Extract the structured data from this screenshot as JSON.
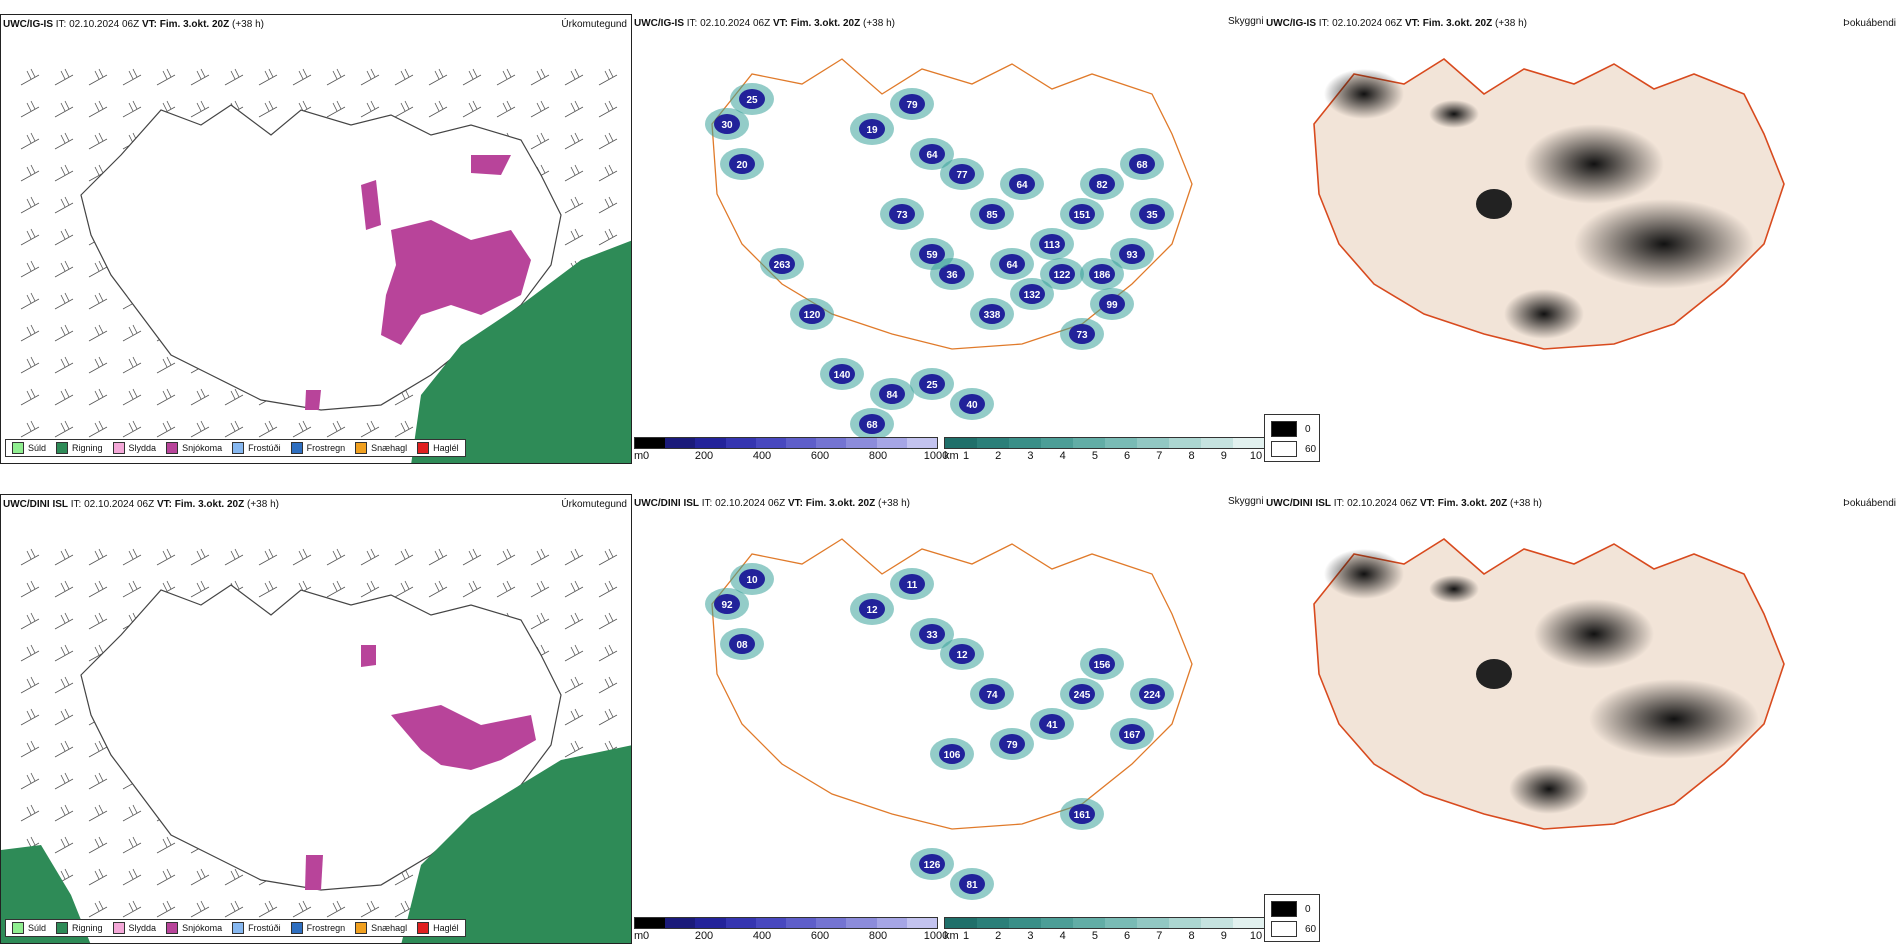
{
  "rows": [
    {
      "model": "UWC/IG-IS",
      "it_label": "IT:",
      "it_value": "02.10.2024 06Z",
      "vt_label": "VT:",
      "vt_value": "Fim. 3.okt. 20Z",
      "lead": "(+38 h)",
      "precip_title": "Úrkomutegund",
      "visibility_title": "Skyggni",
      "fog_title": "Þokuábendi",
      "vis_labels": [
        "30",
        "25",
        "20",
        "19",
        "79",
        "64",
        "77",
        "85",
        "64",
        "113",
        "151",
        "82",
        "93",
        "35",
        "36",
        "25",
        "40",
        "73",
        "68",
        "84",
        "132",
        "99",
        "140",
        "120",
        "263",
        "338",
        "122",
        "68",
        "73",
        "59",
        "64",
        "186"
      ]
    },
    {
      "model": "UWC/DINI ISL",
      "it_label": "IT:",
      "it_value": "02.10.2024 06Z",
      "vt_label": "VT:",
      "vt_value": "Fim. 3.okt. 20Z",
      "lead": "(+38 h)",
      "precip_title": "Úrkomutegund",
      "visibility_title": "Skyggni",
      "fog_title": "Þokuábendi",
      "vis_labels": [
        "92",
        "10",
        "08",
        "12",
        "11",
        "33",
        "12",
        "74",
        "79",
        "41",
        "245",
        "156",
        "167",
        "224",
        "106",
        "126",
        "81",
        "161"
      ]
    }
  ],
  "precip_legend": [
    {
      "label": "Súld",
      "color": "#90ee90"
    },
    {
      "label": "Rigning",
      "color": "#2e8b57"
    },
    {
      "label": "Slydda",
      "color": "#f4a8d8"
    },
    {
      "label": "Snjókoma",
      "color": "#b8449a"
    },
    {
      "label": "Frostúði",
      "color": "#87b8f0"
    },
    {
      "label": "Frostregn",
      "color": "#2f6fc0"
    },
    {
      "label": "Snæhagl",
      "color": "#f0a020"
    },
    {
      "label": "Haglél",
      "color": "#e02020"
    }
  ],
  "ceiling_scale": {
    "unit": "m",
    "ticks": [
      "0",
      "200",
      "400",
      "600",
      "800",
      "1000"
    ],
    "colors": [
      "#000000",
      "#1a1a7a",
      "#23239a",
      "#3535b0",
      "#4848bf",
      "#5e5ec9",
      "#7474d2",
      "#8c8cdb",
      "#a6a6e5",
      "#c3c3ef"
    ]
  },
  "vis_scale": {
    "unit": "km",
    "ticks": [
      "1",
      "2",
      "3",
      "4",
      "5",
      "6",
      "7",
      "8",
      "9",
      "10"
    ],
    "colors": [
      "#1f6f6a",
      "#2b7f79",
      "#3a8f88",
      "#4c9e97",
      "#62ada6",
      "#79bbb5",
      "#92c8c3",
      "#acd6d1",
      "#c6e3e0",
      "#e2f1ef"
    ]
  },
  "fog_scale": {
    "high": "0",
    "low": "60"
  }
}
